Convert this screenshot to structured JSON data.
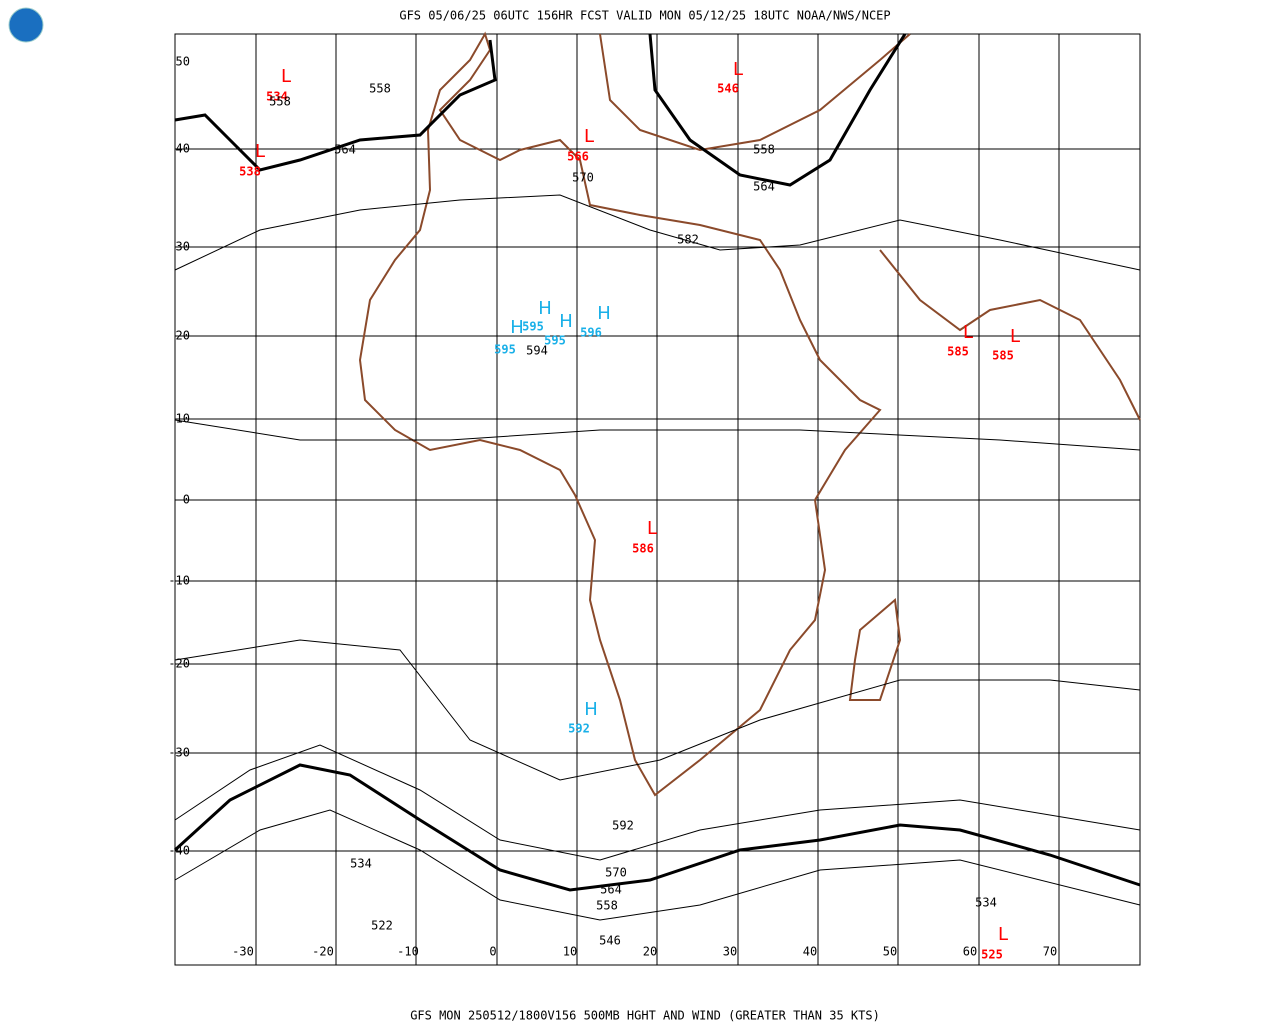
{
  "header": {
    "title": "GFS 05/06/25 06UTC 156HR FCST VALID MON 05/12/25 18UTC NOAA/NWS/NCEP"
  },
  "footer": {
    "caption": "GFS MON 250512/1800V156 500MB HGHT AND WIND (GREATER THAN 35 KTS)"
  },
  "map": {
    "latitude_labels": [
      50,
      40,
      30,
      20,
      10,
      0,
      -10,
      -20,
      -30,
      -40
    ],
    "longitude_labels": [
      -30,
      -20,
      -10,
      0,
      10,
      20,
      30,
      40,
      50,
      60,
      70
    ],
    "low_color": "#ff0000",
    "high_color": "#1ab0e8",
    "lows": [
      {
        "letter": "L",
        "value": "534"
      },
      {
        "letter": "L",
        "value": "538"
      },
      {
        "letter": "L",
        "value": "566"
      },
      {
        "letter": "L",
        "value": "546"
      },
      {
        "letter": "L",
        "value": "585"
      },
      {
        "letter": "L",
        "value": "585"
      },
      {
        "letter": "L",
        "value": "586"
      },
      {
        "letter": "L",
        "value": "525"
      }
    ],
    "highs": [
      {
        "letter": "H",
        "value": "595"
      },
      {
        "letter": "H",
        "value": "595"
      },
      {
        "letter": "H",
        "value": "595"
      },
      {
        "letter": "H",
        "value": "596"
      },
      {
        "letter": "H",
        "value": "592"
      }
    ],
    "contour_labels": [
      "558",
      "558",
      "564",
      "570",
      "558",
      "564",
      "582",
      "594",
      "592",
      "570",
      "564",
      "558",
      "546",
      "534",
      "522",
      "534"
    ]
  }
}
